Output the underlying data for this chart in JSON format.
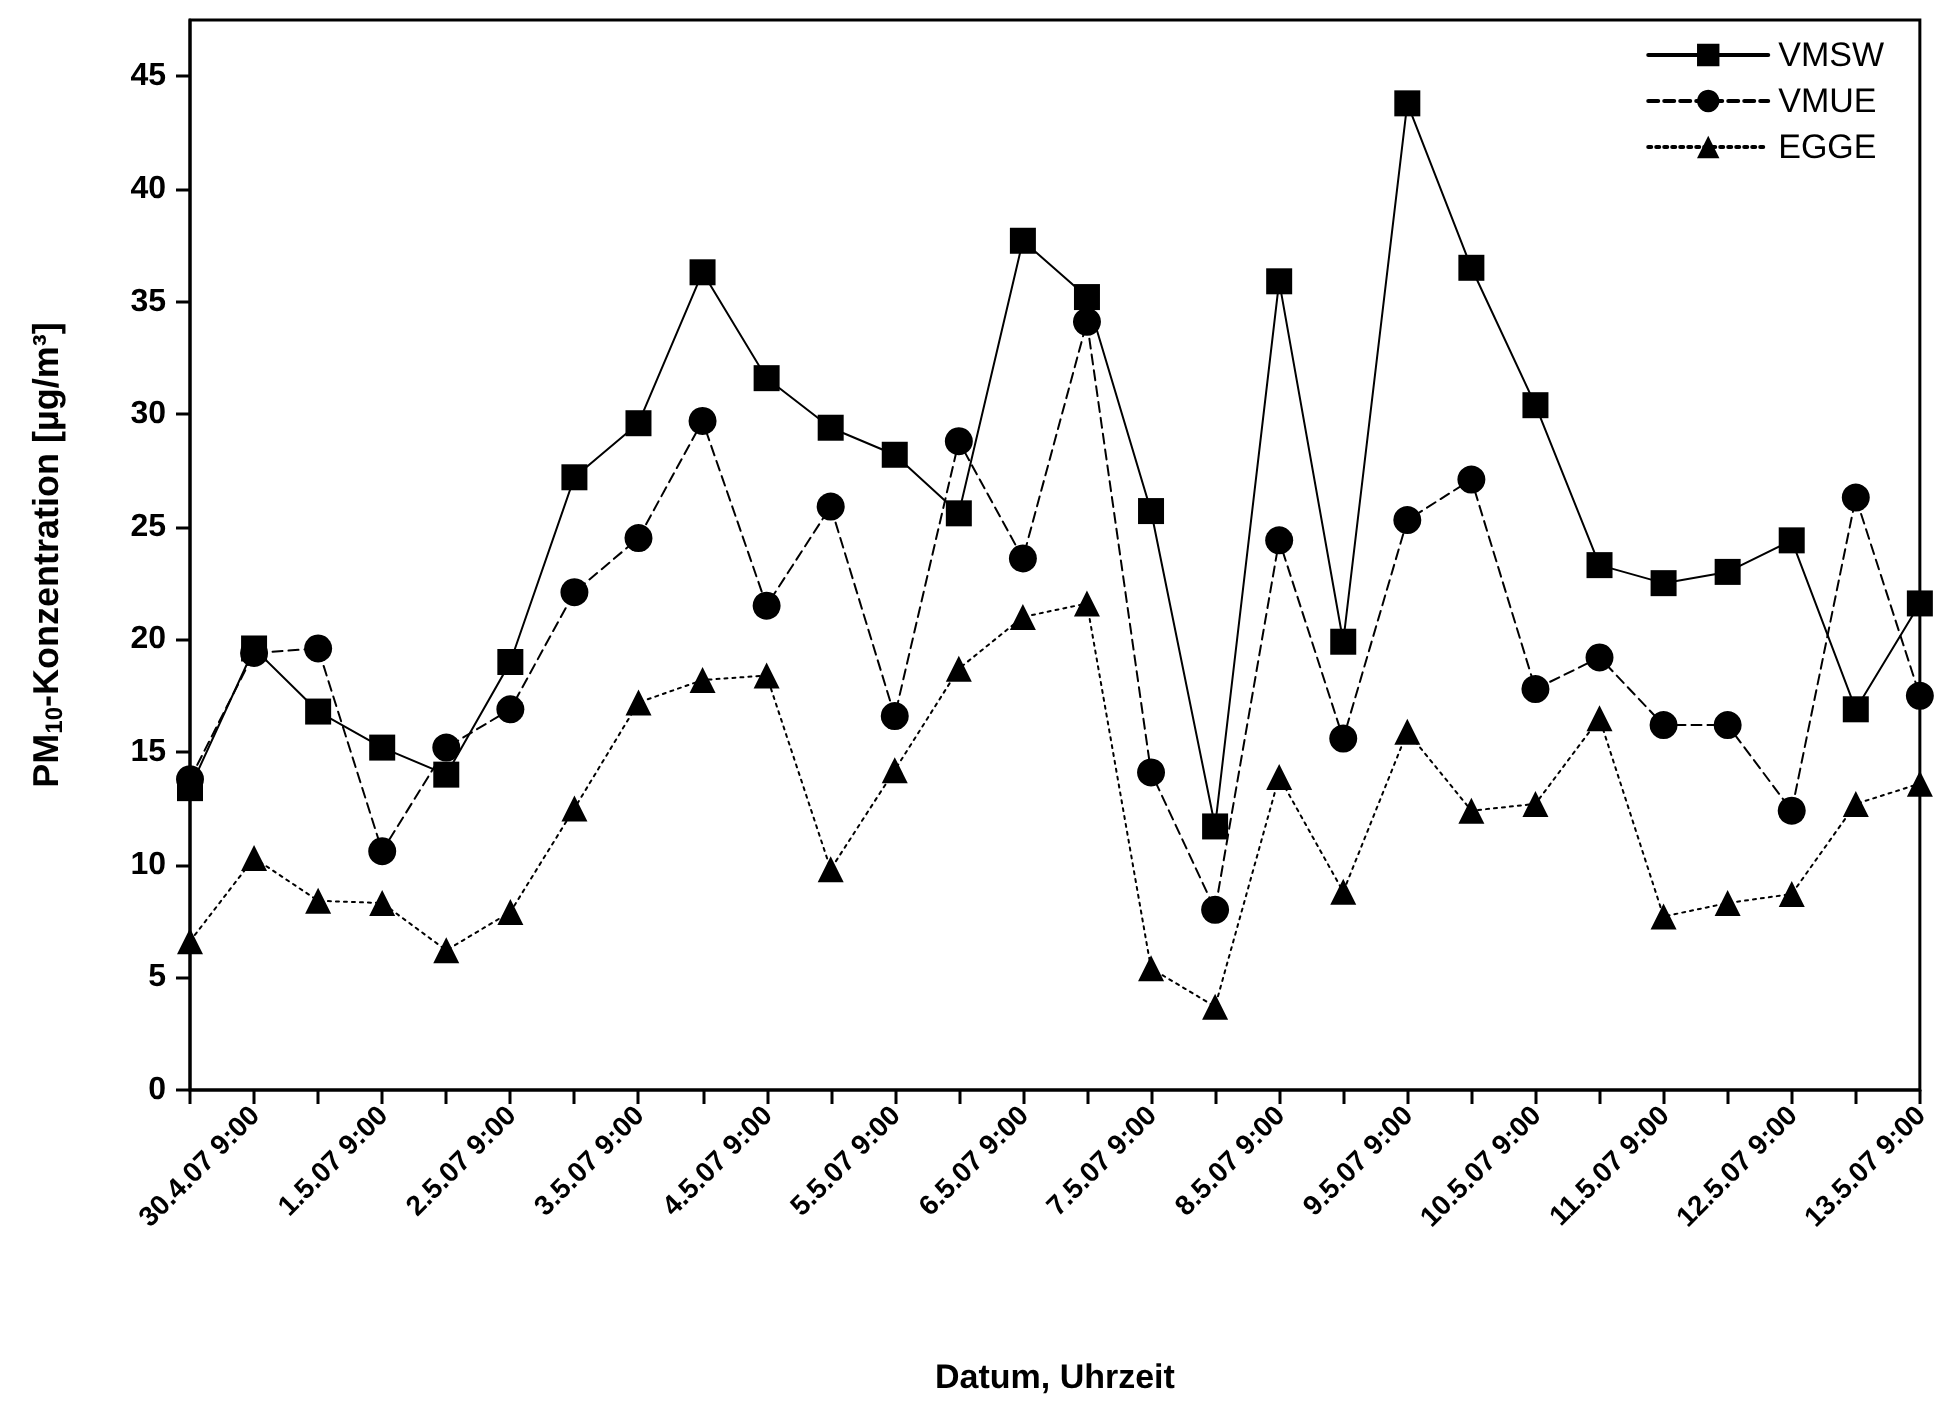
{
  "chart_data": {
    "type": "line",
    "xlabel": "Datum, Uhrzeit",
    "ylabel": "PM$_{10}$-Konzentration [µg/m³]",
    "categories": [
      null,
      "30.4.07 9:00",
      null,
      "1.5.07 9:00",
      null,
      "2.5.07 9:00",
      null,
      "3.5.07 9:00",
      null,
      "4.5.07 9:00",
      null,
      "5.5.07 9:00",
      null,
      "6.5.07 9:00",
      null,
      "7.5.07 9:00",
      null,
      "8.5.07 9:00",
      null,
      "9.5.07 9:00",
      null,
      "10.5.07 9:00",
      null,
      "11.5.07 9:00",
      null,
      "12.5.07 9:00",
      null,
      "13.5.07 9:00"
    ],
    "series": [
      {
        "name": "VMSW",
        "color": "#000000",
        "marker": "square",
        "line_style": "solid",
        "values": [
          13.4,
          19.6,
          16.8,
          15.2,
          14.0,
          19.0,
          27.2,
          29.6,
          36.3,
          31.6,
          29.4,
          28.2,
          25.6,
          37.7,
          35.2,
          25.7,
          11.7,
          35.9,
          19.9,
          43.8,
          36.5,
          30.4,
          23.3,
          22.5,
          23.0,
          24.4,
          16.9,
          21.6
        ]
      },
      {
        "name": "VMUE",
        "color": "#000000",
        "marker": "circle",
        "line_style": "dashed",
        "values": [
          13.8,
          19.4,
          19.6,
          10.6,
          15.2,
          16.9,
          22.1,
          24.5,
          29.7,
          21.5,
          25.9,
          16.6,
          28.8,
          23.6,
          34.1,
          14.1,
          8.0,
          24.4,
          15.6,
          25.3,
          27.1,
          17.8,
          19.2,
          16.2,
          16.2,
          12.4,
          26.3,
          17.5
        ]
      },
      {
        "name": "EGGE",
        "color": "#000000",
        "marker": "triangle",
        "line_style": "dotted",
        "values": [
          6.6,
          10.3,
          8.4,
          8.3,
          6.2,
          7.9,
          12.5,
          17.2,
          18.2,
          18.4,
          9.8,
          14.2,
          18.7,
          21.0,
          21.6,
          5.4,
          3.7,
          13.9,
          8.8,
          15.9,
          12.4,
          12.7,
          16.5,
          7.7,
          8.3,
          8.7,
          12.7,
          13.6
        ]
      }
    ],
    "ylim": [
      0,
      47.5
    ],
    "yticks": [
      0,
      5,
      10,
      15,
      20,
      25,
      30,
      35,
      40,
      45
    ],
    "grid": false,
    "legend": "top right"
  }
}
